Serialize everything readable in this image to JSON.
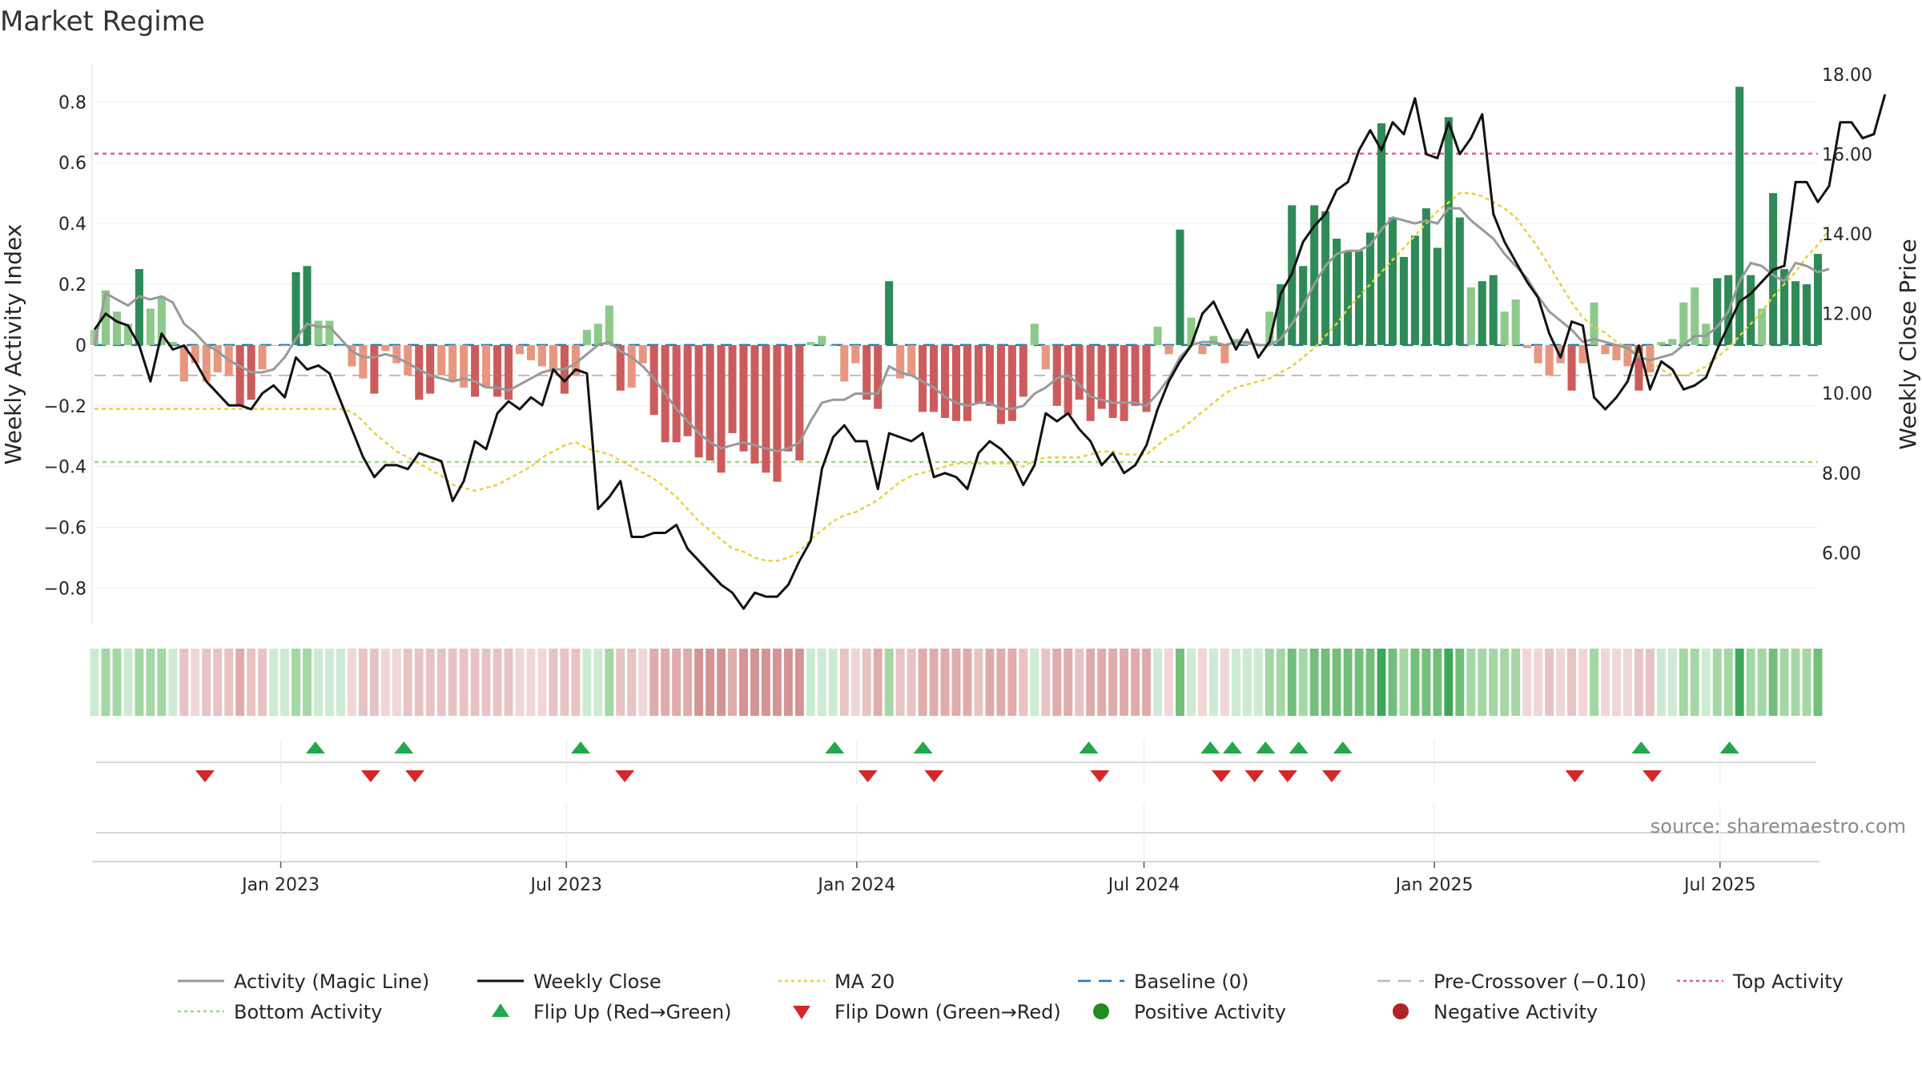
{
  "chart_data": {
    "type": "bar",
    "title": "Market Regime",
    "source": "source: sharemaestro.com",
    "y_left": {
      "label": "Weekly Activity Index",
      "ylim": [
        -0.92,
        0.93
      ],
      "ticks": [
        0.8,
        0.6,
        0.4,
        0.2,
        0,
        -0.2,
        -0.4,
        -0.6,
        -0.8
      ],
      "tick_labels": [
        "0.8",
        "0.6",
        "0.4",
        "0.2",
        "0",
        "−0.2",
        "−0.4",
        "−0.6",
        "−0.8"
      ]
    },
    "y_right": {
      "label": "Weekly Close Price",
      "ylim": [
        4.2,
        18.3
      ],
      "ticks": [
        18,
        16,
        14,
        12,
        10,
        8,
        6
      ],
      "tick_labels": [
        "18.00",
        "16.00",
        "14.00",
        "12.00",
        "10.00",
        "8.00",
        "6.00"
      ]
    },
    "x_axis": {
      "start": "2022-09-05",
      "end": "2025-09-01",
      "ticks": [
        "2023-01-01",
        "2023-07-01",
        "2024-01-01",
        "2024-07-01",
        "2025-01-01",
        "2025-07-01"
      ],
      "tick_labels": [
        "Jan 2023",
        "Jul 2023",
        "Jan 2024",
        "Jul 2024",
        "Jan 2025",
        "Jul 2025"
      ]
    },
    "reference_lines": {
      "baseline": 0,
      "pre_crossover": -0.1,
      "top_activity": 0.63,
      "bottom_activity": -0.385
    },
    "weekly_activity": [
      0.05,
      0.18,
      0.11,
      0.07,
      0.25,
      0.12,
      0.16,
      0.01,
      -0.12,
      -0.06,
      -0.12,
      -0.09,
      -0.1,
      -0.2,
      -0.18,
      -0.08,
      0.0,
      0.0,
      0.24,
      0.26,
      0.08,
      0.08,
      0.0,
      -0.07,
      -0.11,
      -0.16,
      -0.02,
      -0.06,
      -0.1,
      -0.18,
      -0.16,
      -0.1,
      -0.12,
      -0.14,
      -0.17,
      -0.14,
      -0.17,
      -0.18,
      -0.03,
      -0.05,
      -0.07,
      -0.09,
      -0.16,
      -0.1,
      0.05,
      0.07,
      0.13,
      -0.15,
      -0.14,
      -0.06,
      -0.23,
      -0.32,
      -0.32,
      -0.3,
      -0.37,
      -0.38,
      -0.42,
      -0.29,
      -0.35,
      -0.39,
      -0.42,
      -0.45,
      -0.35,
      -0.38,
      0.01,
      0.03,
      0.0,
      -0.12,
      -0.06,
      -0.18,
      -0.21,
      0.21,
      -0.11,
      -0.1,
      -0.22,
      -0.22,
      -0.24,
      -0.25,
      -0.25,
      -0.19,
      -0.2,
      -0.26,
      -0.25,
      -0.17,
      0.07,
      -0.08,
      -0.2,
      -0.23,
      -0.18,
      -0.25,
      -0.21,
      -0.24,
      -0.25,
      -0.2,
      -0.22,
      0.06,
      -0.03,
      0.38,
      0.09,
      -0.03,
      0.03,
      -0.06,
      0.02,
      0.01,
      0.0,
      0.11,
      0.2,
      0.46,
      0.26,
      0.46,
      0.44,
      0.35,
      0.31,
      0.31,
      0.37,
      0.73,
      0.42,
      0.29,
      0.36,
      0.45,
      0.32,
      0.75,
      0.42,
      0.19,
      0.21,
      0.23,
      0.11,
      0.15,
      -0.01,
      -0.06,
      -0.1,
      -0.06,
      -0.15,
      -0.06,
      0.14,
      -0.03,
      -0.05,
      -0.07,
      -0.15,
      -0.09,
      0.01,
      0.02,
      0.14,
      0.19,
      0.07,
      0.22,
      0.23,
      0.85,
      0.23,
      0.12,
      0.5,
      0.25,
      0.21,
      0.2,
      0.3
    ],
    "magic_line": [
      0.0,
      0.17,
      0.15,
      0.13,
      0.16,
      0.15,
      0.16,
      0.14,
      0.07,
      0.04,
      0.0,
      -0.02,
      -0.05,
      -0.07,
      -0.09,
      -0.09,
      -0.08,
      -0.04,
      0.02,
      0.07,
      0.06,
      0.06,
      0.02,
      -0.02,
      -0.04,
      -0.04,
      -0.03,
      -0.04,
      -0.06,
      -0.08,
      -0.1,
      -0.11,
      -0.12,
      -0.11,
      -0.12,
      -0.14,
      -0.14,
      -0.15,
      -0.13,
      -0.11,
      -0.09,
      -0.08,
      -0.08,
      -0.06,
      -0.03,
      0.0,
      0.01,
      -0.02,
      -0.04,
      -0.07,
      -0.11,
      -0.16,
      -0.21,
      -0.25,
      -0.29,
      -0.32,
      -0.34,
      -0.33,
      -0.32,
      -0.33,
      -0.34,
      -0.35,
      -0.34,
      -0.32,
      -0.25,
      -0.19,
      -0.18,
      -0.18,
      -0.16,
      -0.16,
      -0.16,
      -0.07,
      -0.09,
      -0.1,
      -0.12,
      -0.14,
      -0.17,
      -0.19,
      -0.2,
      -0.19,
      -0.19,
      -0.21,
      -0.21,
      -0.2,
      -0.16,
      -0.14,
      -0.11,
      -0.1,
      -0.13,
      -0.17,
      -0.18,
      -0.19,
      -0.19,
      -0.19,
      -0.2,
      -0.16,
      -0.11,
      -0.04,
      0.0,
      0.01,
      0.01,
      0.0,
      0.01,
      0.01,
      0.0,
      0.0,
      0.02,
      0.07,
      0.13,
      0.2,
      0.26,
      0.3,
      0.31,
      0.31,
      0.33,
      0.38,
      0.42,
      0.41,
      0.4,
      0.41,
      0.4,
      0.45,
      0.45,
      0.41,
      0.38,
      0.35,
      0.3,
      0.26,
      0.22,
      0.16,
      0.11,
      0.08,
      0.05,
      0.01,
      0.02,
      0.01,
      0.0,
      -0.01,
      -0.04,
      -0.05,
      -0.04,
      -0.03,
      0.0,
      0.03,
      0.03,
      0.06,
      0.11,
      0.21,
      0.27,
      0.26,
      0.23,
      0.21,
      0.27,
      0.26,
      0.24,
      0.25
    ],
    "weekly_close": [
      11.6,
      12.0,
      11.8,
      11.7,
      11.2,
      10.3,
      11.5,
      11.1,
      11.2,
      10.8,
      10.3,
      10.0,
      9.7,
      9.7,
      9.6,
      10.0,
      10.2,
      9.9,
      10.9,
      10.6,
      10.7,
      10.5,
      9.8,
      9.1,
      8.4,
      7.9,
      8.2,
      8.2,
      8.1,
      8.5,
      8.4,
      8.3,
      7.3,
      7.8,
      8.8,
      8.6,
      9.5,
      9.8,
      9.6,
      9.9,
      9.7,
      10.6,
      10.3,
      10.6,
      10.5,
      7.1,
      7.4,
      7.8,
      6.4,
      6.4,
      6.5,
      6.5,
      6.7,
      6.1,
      5.8,
      5.5,
      5.2,
      5.0,
      4.6,
      5.0,
      4.9,
      4.9,
      5.2,
      5.8,
      6.3,
      8.1,
      8.9,
      9.2,
      8.8,
      8.8,
      7.6,
      9.0,
      8.9,
      8.8,
      9.0,
      7.9,
      8.0,
      7.9,
      7.6,
      8.5,
      8.8,
      8.6,
      8.3,
      7.7,
      8.2,
      9.5,
      9.3,
      9.5,
      9.1,
      8.8,
      8.2,
      8.5,
      8.0,
      8.2,
      8.7,
      9.6,
      10.3,
      10.8,
      11.2,
      12.0,
      12.3,
      11.7,
      11.1,
      11.6,
      10.9,
      11.3,
      12.5,
      13.0,
      13.8,
      14.2,
      14.5,
      15.1,
      15.3,
      16.1,
      16.6,
      16.1,
      16.8,
      16.5,
      17.4,
      16.0,
      15.9,
      16.8,
      16.0,
      16.4,
      17.0,
      14.5,
      13.8,
      13.3,
      12.8,
      12.4,
      11.5,
      10.9,
      11.8,
      11.7,
      9.9,
      9.6,
      9.9,
      10.3,
      11.2,
      10.1,
      10.8,
      10.6,
      10.1,
      10.2,
      10.4,
      11.1,
      11.7,
      12.3,
      12.5,
      12.8,
      13.1,
      13.2,
      15.3,
      15.3,
      14.8,
      15.2,
      16.8,
      16.8,
      16.4,
      16.5,
      17.5
    ],
    "ma20": [
      -0.21,
      -0.21,
      -0.21,
      -0.21,
      -0.21,
      -0.21,
      -0.21,
      -0.21,
      -0.21,
      -0.21,
      -0.21,
      -0.21,
      -0.21,
      -0.21,
      -0.21,
      -0.21,
      -0.21,
      -0.21,
      -0.21,
      -0.21,
      -0.21,
      -0.21,
      -0.21,
      -0.22,
      -0.25,
      -0.29,
      -0.32,
      -0.35,
      -0.37,
      -0.39,
      -0.41,
      -0.43,
      -0.46,
      -0.47,
      -0.48,
      -0.47,
      -0.46,
      -0.44,
      -0.42,
      -0.4,
      -0.37,
      -0.35,
      -0.33,
      -0.32,
      -0.34,
      -0.35,
      -0.36,
      -0.38,
      -0.4,
      -0.42,
      -0.44,
      -0.47,
      -0.5,
      -0.54,
      -0.58,
      -0.61,
      -0.64,
      -0.67,
      -0.68,
      -0.7,
      -0.71,
      -0.71,
      -0.7,
      -0.68,
      -0.64,
      -0.61,
      -0.58,
      -0.56,
      -0.55,
      -0.53,
      -0.51,
      -0.48,
      -0.45,
      -0.43,
      -0.42,
      -0.41,
      -0.4,
      -0.39,
      -0.39,
      -0.39,
      -0.39,
      -0.39,
      -0.39,
      -0.4,
      -0.38,
      -0.37,
      -0.37,
      -0.37,
      -0.37,
      -0.36,
      -0.35,
      -0.35,
      -0.36,
      -0.36,
      -0.36,
      -0.33,
      -0.3,
      -0.28,
      -0.25,
      -0.22,
      -0.19,
      -0.16,
      -0.14,
      -0.13,
      -0.12,
      -0.11,
      -0.09,
      -0.07,
      -0.04,
      -0.01,
      0.03,
      0.07,
      0.12,
      0.16,
      0.2,
      0.24,
      0.28,
      0.32,
      0.36,
      0.4,
      0.44,
      0.47,
      0.5,
      0.5,
      0.49,
      0.47,
      0.45,
      0.42,
      0.37,
      0.32,
      0.26,
      0.2,
      0.14,
      0.09,
      0.06,
      0.04,
      0.01,
      -0.01,
      -0.03,
      -0.05,
      -0.08,
      -0.1,
      -0.1,
      -0.09,
      -0.07,
      -0.04,
      -0.01,
      0.03,
      0.07,
      0.11,
      0.16,
      0.2,
      0.24,
      0.29,
      0.33,
      0.38
    ],
    "flips_up": [
      "2023-01-23",
      "2023-03-20",
      "2023-07-10",
      "2023-12-18",
      "2024-02-12",
      "2024-05-27",
      "2024-08-12",
      "2024-08-26",
      "2024-09-16",
      "2024-10-07",
      "2024-11-04",
      "2025-05-12",
      "2025-07-07"
    ],
    "flips_down": [
      "2022-11-14",
      "2023-02-27",
      "2023-03-27",
      "2023-08-07",
      "2024-01-08",
      "2024-02-19",
      "2024-06-03",
      "2024-08-19",
      "2024-09-09",
      "2024-09-30",
      "2024-10-28",
      "2025-03-31",
      "2025-05-19"
    ],
    "series": [
      {
        "name": "Activity (Magic Line)",
        "color": "#999999"
      },
      {
        "name": "Weekly Close",
        "color": "#111111"
      },
      {
        "name": "MA 20",
        "color": "#e6d33a"
      },
      {
        "name": "Baseline (0)",
        "color": "#1f77b4"
      },
      {
        "name": "Pre-Crossover (−0.10)",
        "color": "#bbbbbb"
      },
      {
        "name": "Top Activity",
        "color": "#e0607a"
      },
      {
        "name": "Bottom Activity",
        "color": "#9fd67a"
      },
      {
        "name": "Flip Up (Red→Green)",
        "color": "#22a84a"
      },
      {
        "name": "Flip Down (Green→Red)",
        "color": "#d62728"
      },
      {
        "name": "Positive Activity",
        "color": "#228b22"
      },
      {
        "name": "Negative Activity",
        "color": "#b22222"
      }
    ],
    "legend_placement": "bottom",
    "grid": true
  }
}
